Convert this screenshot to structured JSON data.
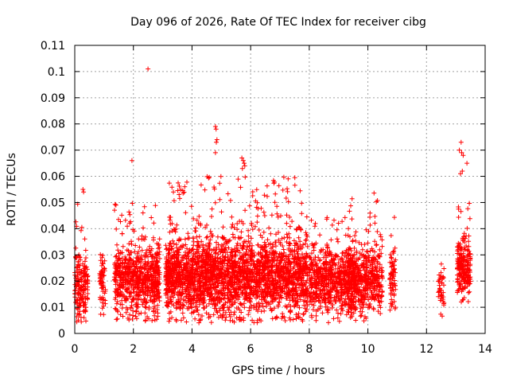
{
  "chart_data": {
    "type": "scatter",
    "title": "Day 096 of 2026, Rate Of TEC Index for receiver cibg",
    "xlabel": "GPS time / hours",
    "ylabel": "ROTI / TECUs",
    "xlim": [
      0,
      14
    ],
    "ylim": [
      0,
      0.11
    ],
    "xticks": [
      "0",
      "2",
      "4",
      "6",
      "8",
      "10",
      "12",
      "14"
    ],
    "yticks": [
      "0",
      "0.01",
      "0.02",
      "0.03",
      "0.04",
      "0.05",
      "0.06",
      "0.07",
      "0.08",
      "0.09",
      "0.1",
      "0.11"
    ],
    "grid": true,
    "marker": "plus",
    "color": "#ff0000",
    "clusters": [
      {
        "x_start": 0.0,
        "x_end": 0.45,
        "y_mean": 0.019,
        "y_spread": 0.009,
        "density": 180,
        "max": 0.055
      },
      {
        "x_start": 0.85,
        "x_end": 1.05,
        "y_mean": 0.018,
        "y_spread": 0.007,
        "density": 60,
        "max": 0.031
      },
      {
        "x_start": 1.35,
        "x_end": 2.9,
        "y_mean": 0.02,
        "y_spread": 0.009,
        "density": 700,
        "max": 0.051
      },
      {
        "x_start": 3.1,
        "x_end": 7.95,
        "y_mean": 0.021,
        "y_spread": 0.01,
        "density": 2600,
        "max": 0.06
      },
      {
        "x_start": 8.0,
        "x_end": 9.6,
        "y_mean": 0.02,
        "y_spread": 0.008,
        "density": 650,
        "max": 0.046
      },
      {
        "x_start": 9.3,
        "x_end": 10.5,
        "y_mean": 0.02,
        "y_spread": 0.009,
        "density": 500,
        "max": 0.055
      },
      {
        "x_start": 10.75,
        "x_end": 10.95,
        "y_mean": 0.022,
        "y_spread": 0.008,
        "density": 70,
        "max": 0.049
      },
      {
        "x_start": 12.4,
        "x_end": 12.6,
        "y_mean": 0.017,
        "y_spread": 0.006,
        "density": 40,
        "max": 0.028
      },
      {
        "x_start": 13.05,
        "x_end": 13.5,
        "y_mean": 0.024,
        "y_spread": 0.008,
        "density": 220,
        "max": 0.05
      }
    ],
    "outliers": [
      {
        "x": 2.5,
        "y": 0.101
      },
      {
        "x": 1.95,
        "y": 0.066
      },
      {
        "x": 4.8,
        "y": 0.079
      },
      {
        "x": 4.82,
        "y": 0.078
      },
      {
        "x": 4.85,
        "y": 0.074
      },
      {
        "x": 4.83,
        "y": 0.073
      },
      {
        "x": 4.8,
        "y": 0.069
      },
      {
        "x": 5.7,
        "y": 0.067
      },
      {
        "x": 5.75,
        "y": 0.066
      },
      {
        "x": 5.78,
        "y": 0.065
      },
      {
        "x": 5.8,
        "y": 0.064
      },
      {
        "x": 5.72,
        "y": 0.063
      },
      {
        "x": 13.18,
        "y": 0.073
      },
      {
        "x": 13.12,
        "y": 0.07
      },
      {
        "x": 13.2,
        "y": 0.069
      },
      {
        "x": 13.25,
        "y": 0.068
      },
      {
        "x": 13.38,
        "y": 0.065
      },
      {
        "x": 13.22,
        "y": 0.062
      },
      {
        "x": 13.16,
        "y": 0.061
      },
      {
        "x": 0.28,
        "y": 0.055
      },
      {
        "x": 0.3,
        "y": 0.054
      }
    ]
  }
}
